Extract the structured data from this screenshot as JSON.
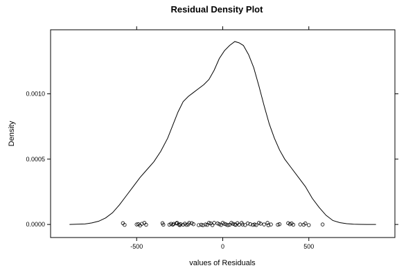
{
  "chart_data": {
    "type": "line",
    "title": "Residual Density Plot",
    "xlabel": "values of Residuals",
    "ylabel": "Density",
    "xlim": [
      -1000,
      1000
    ],
    "ylim": [
      -0.0001,
      0.00149
    ],
    "x_ticks": [
      -500,
      0,
      500
    ],
    "x_tick_labels": [
      "-500",
      "0",
      "500"
    ],
    "y_ticks": [
      0,
      0.0005,
      0.001
    ],
    "y_tick_labels": [
      "0.0000",
      "0.0005",
      "0.0010"
    ],
    "grid": false,
    "series": [
      {
        "kind": "density-curve",
        "x": [
          -890,
          -800,
          -760,
          -720,
          -680,
          -640,
          -600,
          -560,
          -520,
          -480,
          -440,
          -400,
          -360,
          -320,
          -290,
          -260,
          -230,
          -200,
          -170,
          -140,
          -110,
          -80,
          -50,
          -20,
          10,
          40,
          70,
          95,
          120,
          150,
          180,
          210,
          240,
          270,
          300,
          330,
          360,
          400,
          440,
          480,
          520,
          560,
          600,
          640,
          680,
          720,
          760,
          800,
          840,
          890
        ],
        "y": [
          0.0,
          4e-06,
          1.2e-05,
          2.5e-05,
          5e-05,
          9e-05,
          0.00015,
          0.00022,
          0.00029,
          0.00036,
          0.00042,
          0.00048,
          0.00056,
          0.00066,
          0.00076,
          0.00086,
          0.00094,
          0.00098,
          0.00101,
          0.00104,
          0.00107,
          0.00111,
          0.00118,
          0.00127,
          0.00133,
          0.00137,
          0.0014,
          0.00139,
          0.00137,
          0.0013,
          0.0012,
          0.00106,
          0.00091,
          0.00077,
          0.00066,
          0.00057,
          0.0005,
          0.00043,
          0.00036,
          0.00029,
          0.0002,
          0.00013,
          7e-05,
          3e-05,
          1.4e-05,
          6e-06,
          2e-06,
          1e-06,
          0.0,
          0.0
        ]
      },
      {
        "kind": "rug-points",
        "x": [
          -580,
          -570,
          -500,
          -490,
          -480,
          -470,
          -455,
          -445,
          -350,
          -345,
          -310,
          -300,
          -290,
          -285,
          -270,
          -265,
          -255,
          -250,
          -245,
          -230,
          -220,
          -210,
          -200,
          -195,
          -180,
          -170,
          -140,
          -125,
          -115,
          -100,
          -90,
          -80,
          -70,
          -60,
          -50,
          -30,
          -20,
          -10,
          0,
          10,
          20,
          30,
          40,
          50,
          60,
          70,
          75,
          85,
          95,
          110,
          115,
          130,
          145,
          160,
          175,
          185,
          195,
          210,
          220,
          240,
          260,
          265,
          280,
          320,
          330,
          380,
          390,
          400,
          410,
          450,
          470,
          480,
          500,
          580
        ],
        "y": [
          1e-05,
          -3e-06,
          0.0,
          2e-06,
          -8e-06,
          5e-06,
          1.2e-05,
          -2e-06,
          1e-05,
          -2e-06,
          -2e-06,
          5e-06,
          -2e-06,
          5e-06,
          8e-06,
          1.2e-05,
          0.0,
          -5e-06,
          2e-06,
          -2e-06,
          6e-06,
          -3e-06,
          0.0,
          1.2e-05,
          1e-05,
          2e-06,
          -5e-06,
          -2e-06,
          -6e-06,
          0.0,
          -3e-06,
          1.2e-05,
          8e-06,
          -5e-06,
          1.2e-05,
          8e-06,
          2e-06,
          -4e-06,
          1.2e-05,
          5e-06,
          0.0,
          -5e-06,
          -2e-06,
          1.2e-05,
          5e-06,
          0.0,
          -3e-06,
          1e-05,
          -2e-06,
          1.2e-05,
          0.0,
          -4e-06,
          8e-06,
          2e-06,
          -3e-06,
          0.0,
          -4e-06,
          1.2e-05,
          6e-06,
          0.0,
          1.2e-05,
          -6e-06,
          0.0,
          -2e-06,
          2e-06,
          1e-05,
          2e-06,
          8e-06,
          -2e-06,
          0.0,
          -2e-06,
          8e-06,
          -5e-06,
          0.0
        ]
      }
    ]
  }
}
